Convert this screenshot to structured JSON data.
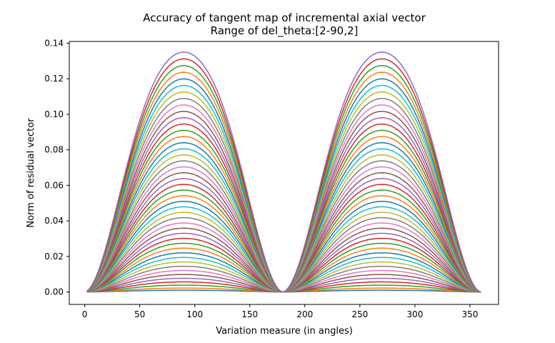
{
  "chart_data": {
    "type": "line",
    "title": "Accuracy of tangent map of incremental axial vector",
    "subtitle": "Range of del_theta:[2-90,2]",
    "xlabel": "Variation measure (in angles)",
    "ylabel": "Norm of residual vector",
    "xlim": [
      -14,
      376
    ],
    "ylim": [
      -0.007,
      0.141
    ],
    "x_ticks": [
      0,
      50,
      100,
      150,
      200,
      250,
      300,
      350
    ],
    "x_tick_labels": [
      "0",
      "50",
      "100",
      "150",
      "200",
      "250",
      "300",
      "350"
    ],
    "y_ticks": [
      0.0,
      0.02,
      0.04,
      0.06,
      0.08,
      0.1,
      0.12,
      0.14
    ],
    "y_tick_labels": [
      "0.00",
      "0.02",
      "0.04",
      "0.06",
      "0.08",
      "0.10",
      "0.12",
      "0.14"
    ],
    "grid": false,
    "legend": "none",
    "x_range": [
      2,
      360
    ],
    "x_step": 2,
    "peak_locations": [
      80,
      280
    ],
    "trough_location": 180,
    "series_count": 45,
    "series_peak_min": 0.001,
    "series_peak_max": 0.135,
    "series_colors": [
      "#1f77b4",
      "#ff7f0e",
      "#2ca02c",
      "#d62728",
      "#9467bd",
      "#8c564b",
      "#e377c2",
      "#7f7f7f",
      "#bcbd22",
      "#17becf"
    ]
  }
}
